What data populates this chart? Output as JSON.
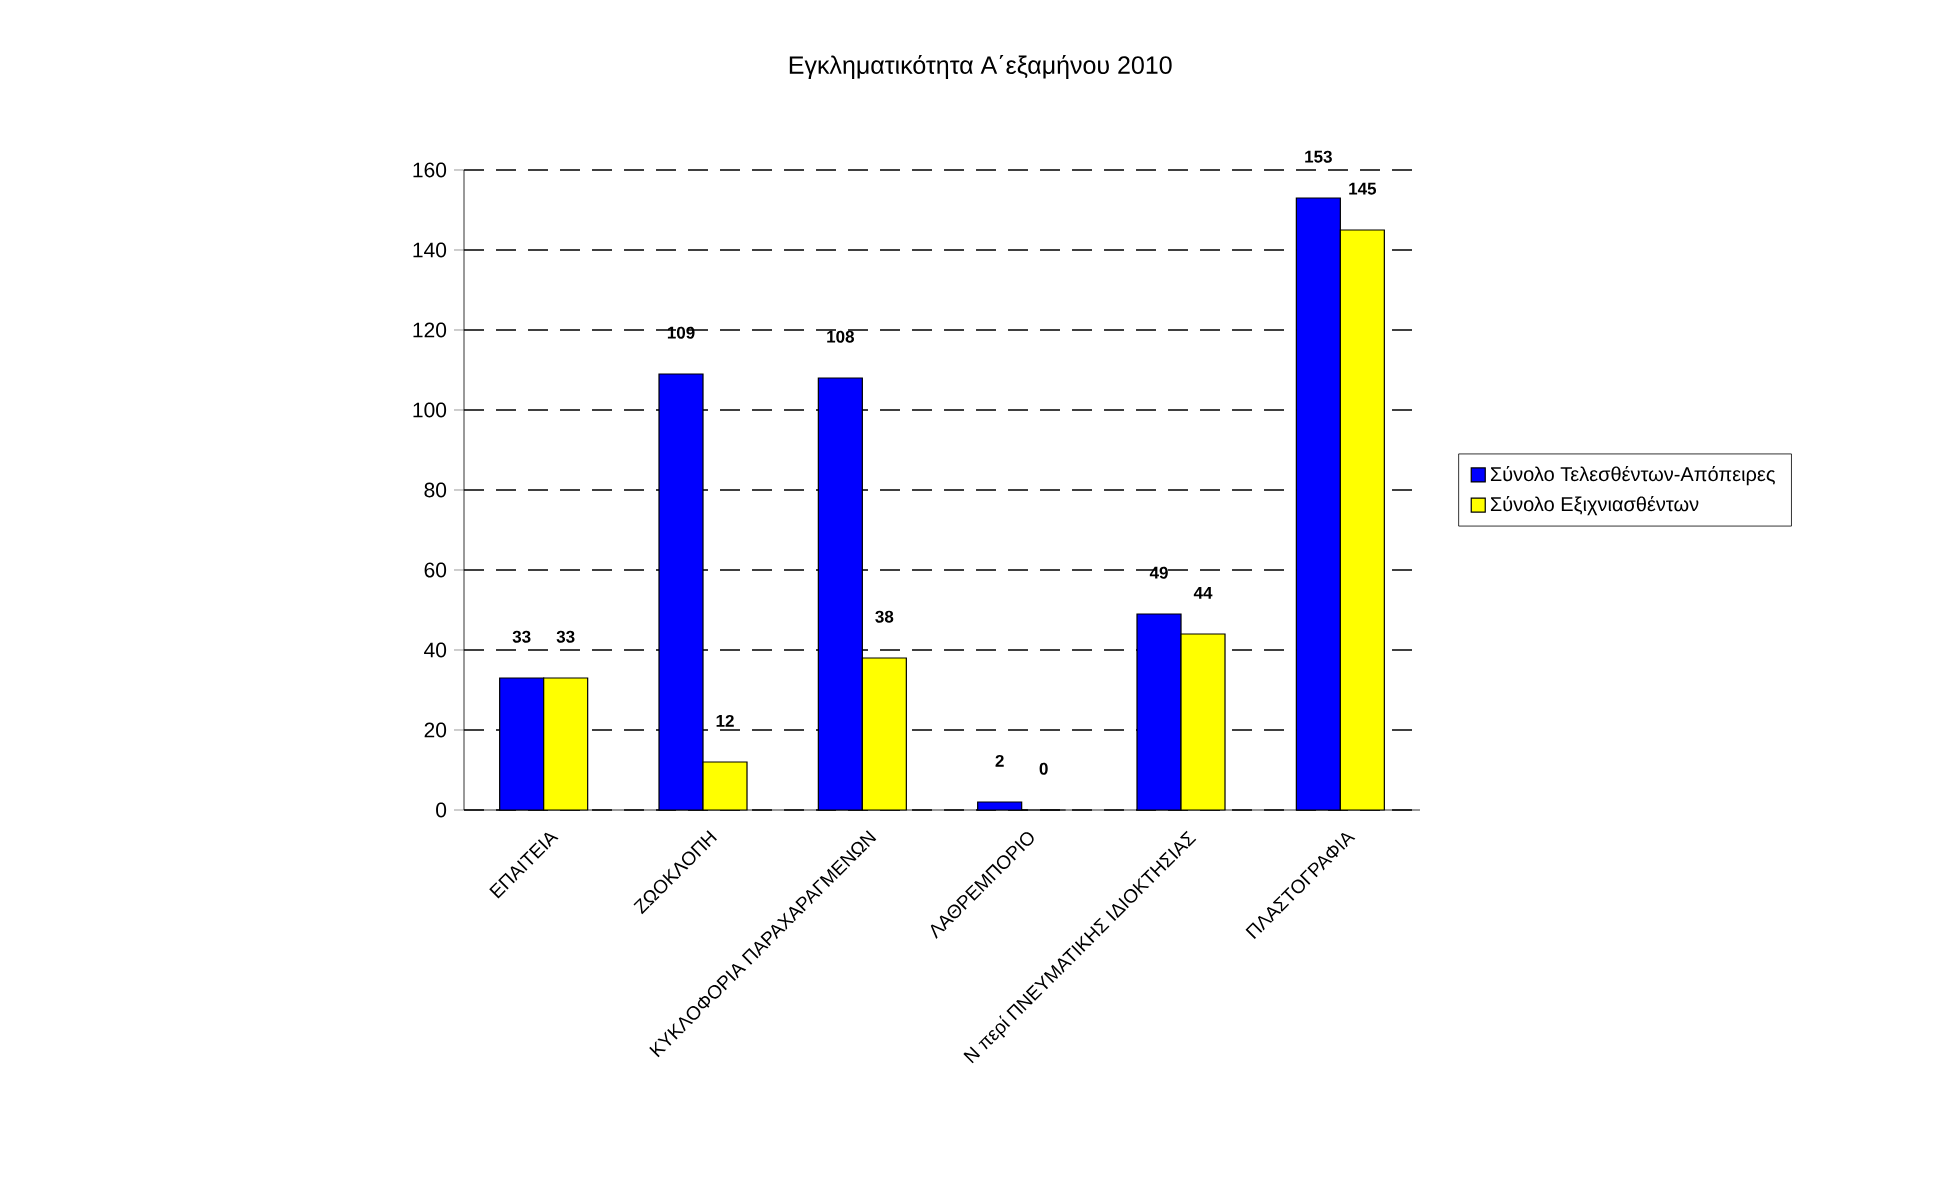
{
  "chart_data": {
    "type": "bar",
    "title": "Εγκληματικότητα Α΄εξαμήνου 2010",
    "categories": [
      "ΕΠΑΙΤΕΙΑ",
      "ΖΩΟΚΛΟΠΗ",
      "ΚΥΚΛΟΦΟΡΙΑ ΠΑΡΑΧΑΡΑΓΜΕΝΩΝ",
      "ΛΑΘΡΕΜΠΟΡΙΟ",
      "Ν περί ΠΝΕΥΜΑΤΙΚΗΣ ΙΔΙΟΚΤΗΣΙΑΣ",
      "ΠΛΑΣΤΟΓΡΑΦΙΑ"
    ],
    "series": [
      {
        "name": "Σύνολο Τελεσθέντων-Απόπειρες",
        "color": "#0000ff",
        "values": [
          33,
          109,
          108,
          2,
          49,
          153
        ]
      },
      {
        "name": "Σύνολο Εξιχνιασθέντων",
        "color": "#ffff00",
        "values": [
          33,
          12,
          38,
          0,
          44,
          145
        ]
      }
    ],
    "ylim": [
      0,
      160
    ],
    "yticks": [
      0,
      20,
      40,
      60,
      80,
      100,
      120,
      140,
      160
    ],
    "grid": "y",
    "legend": "right",
    "data_labels": true
  }
}
